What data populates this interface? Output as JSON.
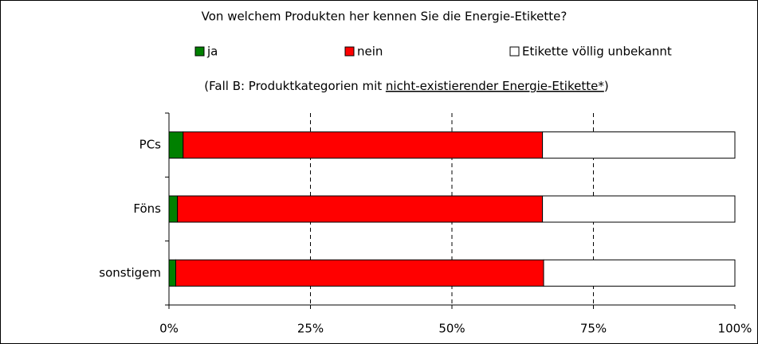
{
  "chart_data": {
    "type": "stacked_barh",
    "title": "Von welchem Produkten her kennen Sie die Energie-Etikette?",
    "subtitle_parts": [
      "(Fall B: Produktkategorien mit ",
      "nicht-existierender Energie-Etikette*",
      ")"
    ],
    "categories": [
      "PCs",
      "Föns",
      "sonstigem"
    ],
    "series": [
      {
        "name": "ja",
        "color": "#008000",
        "values": [
          2.5,
          1.5,
          1.2
        ]
      },
      {
        "name": "nein",
        "color": "#ff0000",
        "values": [
          63.5,
          64.5,
          65
        ]
      },
      {
        "name": "Etikette völlig unbekannt",
        "color": "#ffffff",
        "values": [
          34,
          34,
          33.8
        ]
      }
    ],
    "xlim": [
      0,
      100
    ],
    "xticks": [
      {
        "value": 0,
        "label": "0%"
      },
      {
        "value": 25,
        "label": "25%"
      },
      {
        "value": 50,
        "label": "50%"
      },
      {
        "value": 75,
        "label": "75%"
      },
      {
        "value": 100,
        "label": "100%"
      }
    ],
    "grid": true
  }
}
